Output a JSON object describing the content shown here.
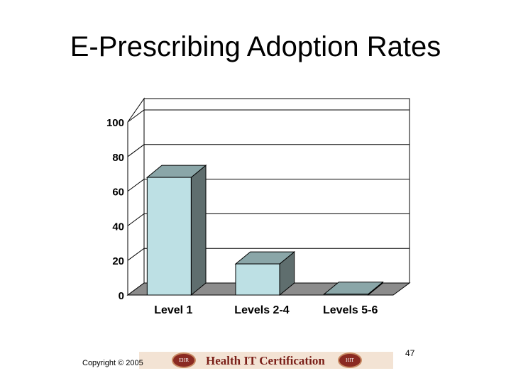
{
  "slide": {
    "title": "E-Prescribing Adoption Rates",
    "copyright": "Copyright © 2005",
    "page_number": "47"
  },
  "banner": {
    "text": "Health IT Certification",
    "seal_left": "EHR",
    "seal_right": "HIT"
  },
  "colors": {
    "bar_front": "#bde0e4",
    "bar_top": "#8aa6a8",
    "bar_side": "#5f6e6e",
    "floor": "#8c8c8c"
  },
  "chart_data": {
    "type": "bar",
    "title": "",
    "xlabel": "",
    "ylabel": "",
    "categories": [
      "Level 1",
      "Levels 2-4",
      "Levels 5-6"
    ],
    "values": [
      68,
      18,
      0.5
    ],
    "ylim": [
      0,
      100
    ],
    "yticks": [
      "0",
      "20",
      "40",
      "60",
      "80",
      "100"
    ],
    "grid": true
  }
}
